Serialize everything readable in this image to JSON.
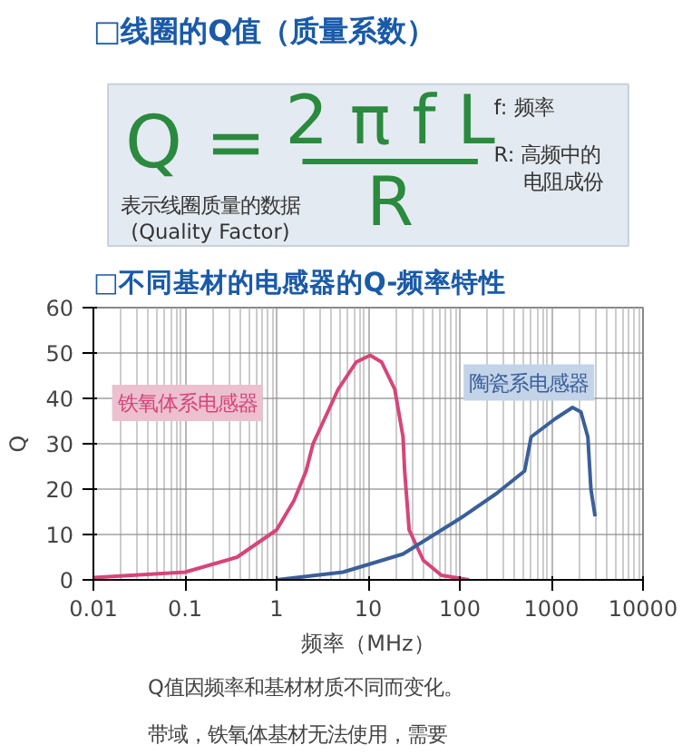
{
  "chart_data": [
    {
      "type": "other",
      "title": "□线圈的Q值（质量系数）",
      "annotations": [
        "Q =",
        "2 π f L",
        "R",
        "表示线圈质量的数据",
        "(Quality Factor)",
        "f:  频率",
        "R:  高频中的",
        "电阻成份"
      ]
    },
    {
      "type": "line",
      "title": "□不同基材的电感器的Q-频率特性",
      "xlabel": "频率（MHz）",
      "ylabel": "Q",
      "log": "x",
      "grid": true,
      "legend": false,
      "xlim": [
        0.01,
        10000
      ],
      "xticks": [
        0.01,
        0.1,
        1,
        10,
        100,
        1000,
        10000
      ],
      "ylim": [
        0,
        60
      ],
      "yticks": [
        0,
        10,
        20,
        30,
        40,
        50,
        60
      ],
      "series": [
        {
          "name": "铁氧体系电感器",
          "color": "#d6457a",
          "x": [
            0.01,
            0.1,
            0.37,
            1,
            1.55,
            2.1,
            2.5,
            4.7,
            7.4,
            10.5,
            14,
            19.5,
            24,
            25,
            28,
            40,
            63,
            126
          ],
          "values": [
            0.5,
            1.7,
            5,
            11,
            17.5,
            24,
            30,
            42,
            48,
            49.5,
            48,
            42,
            31.5,
            24,
            11,
            4.3,
            1,
            0
          ]
        },
        {
          "name": "陶瓷系电感器",
          "color": "#3a5f9a",
          "x": [
            1,
            5.3,
            24,
            100,
            250,
            510,
            600,
            1100,
            1700,
            2100,
            2500,
            2700,
            3000
          ],
          "values": [
            0,
            1.7,
            5.7,
            13.5,
            19,
            24,
            31.5,
            35.5,
            38,
            37,
            31.5,
            20,
            14
          ]
        }
      ],
      "annotations": [
        "Q值因频率和基材材质不同而变化。",
        "带域，铁氧体基材无法使用，需要"
      ]
    }
  ]
}
